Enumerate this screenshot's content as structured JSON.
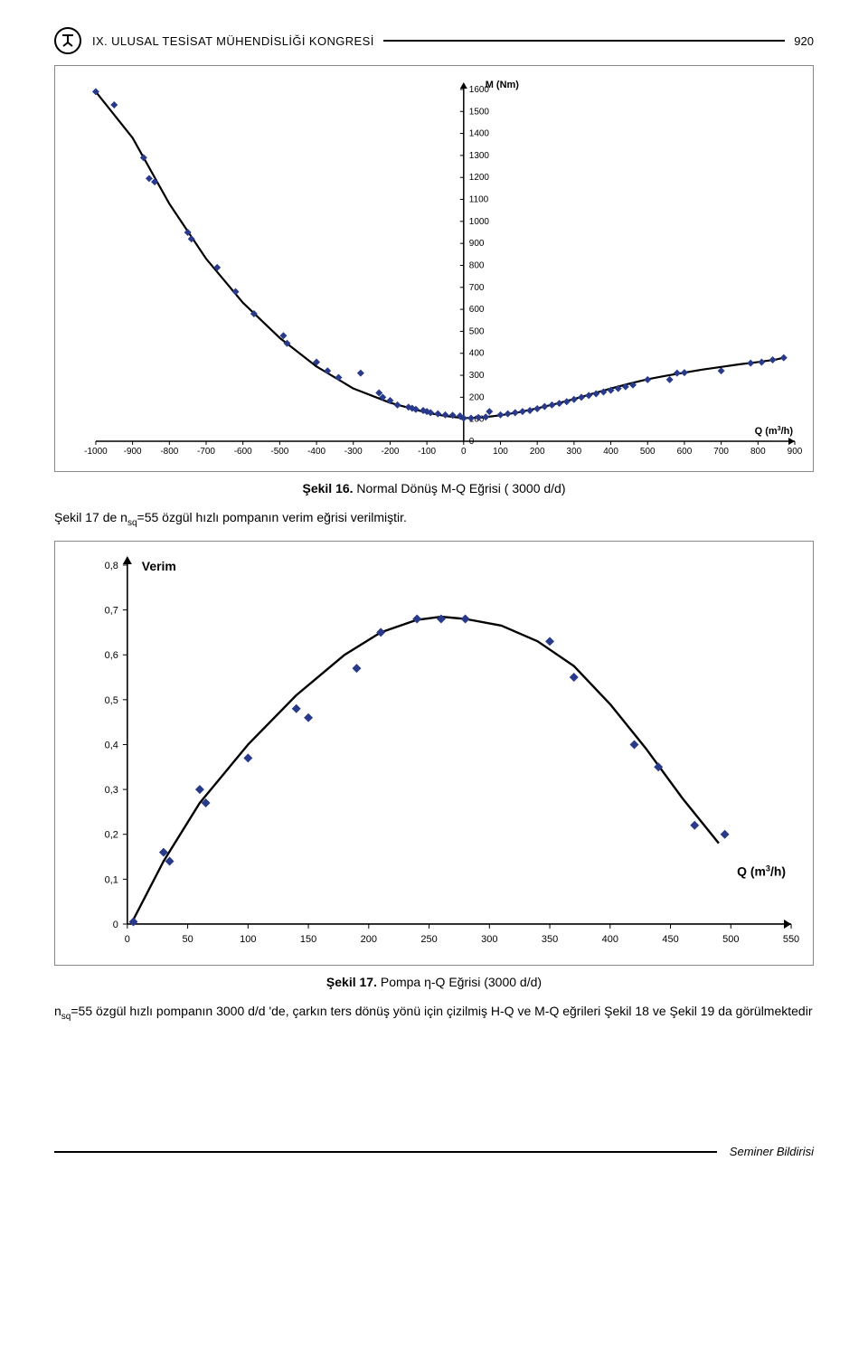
{
  "header": {
    "title": "IX. ULUSAL TESİSAT MÜHENDİSLİĞİ KONGRESİ",
    "page_number": "920"
  },
  "chart1": {
    "type": "scatter-line",
    "y_axis_label": "M (Nm)",
    "x_axis_label": "Q (m3/h)",
    "x_ticks": [
      -1000,
      -900,
      -800,
      -700,
      -600,
      -500,
      -400,
      -300,
      -200,
      -100,
      0,
      100,
      200,
      300,
      400,
      500,
      600,
      700,
      800,
      900
    ],
    "y_ticks": [
      0,
      100,
      200,
      300,
      400,
      500,
      600,
      700,
      800,
      900,
      1000,
      1100,
      1200,
      1300,
      1400,
      1500,
      1600
    ],
    "xlim": [
      -1000,
      900
    ],
    "ylim": [
      0,
      1600
    ],
    "background": "#ffffff",
    "grid": false,
    "axis_color": "#000000",
    "tick_fontsize": 10,
    "label_fontsize": 11,
    "marker_color": "#2a3a8a",
    "marker_size": 6,
    "line_color": "#000000",
    "line_width": 2.2,
    "markers": [
      [
        -1000,
        1590
      ],
      [
        -950,
        1530
      ],
      [
        -870,
        1290
      ],
      [
        -855,
        1195
      ],
      [
        -840,
        1180
      ],
      [
        -750,
        950
      ],
      [
        -740,
        920
      ],
      [
        -670,
        790
      ],
      [
        -620,
        680
      ],
      [
        -570,
        580
      ],
      [
        -490,
        480
      ],
      [
        -480,
        445
      ],
      [
        -400,
        360
      ],
      [
        -370,
        320
      ],
      [
        -340,
        290
      ],
      [
        -280,
        310
      ],
      [
        -230,
        220
      ],
      [
        -220,
        200
      ],
      [
        -200,
        185
      ],
      [
        -180,
        165
      ],
      [
        -150,
        155
      ],
      [
        -140,
        150
      ],
      [
        -130,
        145
      ],
      [
        -110,
        140
      ],
      [
        -100,
        135
      ],
      [
        -90,
        130
      ],
      [
        -70,
        125
      ],
      [
        -50,
        120
      ],
      [
        -30,
        118
      ],
      [
        -10,
        115
      ],
      [
        0,
        105
      ],
      [
        20,
        105
      ],
      [
        40,
        108
      ],
      [
        60,
        110
      ],
      [
        70,
        135
      ],
      [
        100,
        120
      ],
      [
        120,
        125
      ],
      [
        140,
        130
      ],
      [
        160,
        135
      ],
      [
        180,
        140
      ],
      [
        200,
        148
      ],
      [
        220,
        158
      ],
      [
        240,
        165
      ],
      [
        260,
        172
      ],
      [
        280,
        180
      ],
      [
        300,
        190
      ],
      [
        320,
        200
      ],
      [
        340,
        208
      ],
      [
        360,
        216
      ],
      [
        380,
        224
      ],
      [
        400,
        232
      ],
      [
        420,
        240
      ],
      [
        440,
        248
      ],
      [
        460,
        256
      ],
      [
        500,
        280
      ],
      [
        560,
        280
      ],
      [
        580,
        310
      ],
      [
        600,
        312
      ],
      [
        700,
        320
      ],
      [
        780,
        355
      ],
      [
        810,
        360
      ],
      [
        840,
        370
      ],
      [
        870,
        380
      ]
    ],
    "curve": [
      [
        -1000,
        1590
      ],
      [
        -900,
        1380
      ],
      [
        -800,
        1080
      ],
      [
        -700,
        830
      ],
      [
        -600,
        630
      ],
      [
        -500,
        470
      ],
      [
        -400,
        340
      ],
      [
        -300,
        240
      ],
      [
        -200,
        175
      ],
      [
        -100,
        130
      ],
      [
        -50,
        115
      ],
      [
        0,
        105
      ],
      [
        50,
        108
      ],
      [
        100,
        118
      ],
      [
        150,
        132
      ],
      [
        200,
        150
      ],
      [
        250,
        170
      ],
      [
        300,
        192
      ],
      [
        350,
        216
      ],
      [
        400,
        240
      ],
      [
        450,
        262
      ],
      [
        500,
        282
      ],
      [
        550,
        298
      ],
      [
        600,
        312
      ],
      [
        650,
        326
      ],
      [
        700,
        338
      ],
      [
        750,
        350
      ],
      [
        800,
        360
      ],
      [
        850,
        372
      ],
      [
        870,
        380
      ]
    ]
  },
  "caption1": {
    "bold": "Şekil 16.",
    "rest": " Normal Dönüş M-Q Eğrisi ( 3000 d/d)"
  },
  "text1": {
    "pre": "Şekil 17 de  n",
    "sub": "sq",
    "post": "=55 özgül hızlı pompanın verim eğrisi verilmiştir."
  },
  "chart2": {
    "type": "scatter-line",
    "y_axis_label": "Verim",
    "x_axis_label": "Q (m3/h)",
    "x_ticks": [
      0,
      50,
      100,
      150,
      200,
      250,
      300,
      350,
      400,
      450,
      500,
      550
    ],
    "y_ticks": [
      0,
      0.1,
      0.2,
      0.3,
      0.4,
      0.5,
      0.6,
      0.7,
      0.8
    ],
    "xlim": [
      0,
      550
    ],
    "ylim": [
      0,
      0.8
    ],
    "background": "#ffffff",
    "axis_color": "#000000",
    "tick_fontsize": 11,
    "label_fontsize": 14,
    "marker_color": "#2a3a8a",
    "marker_size": 7,
    "line_color": "#000000",
    "line_width": 2.4,
    "markers": [
      [
        5,
        0.005
      ],
      [
        30,
        0.16
      ],
      [
        35,
        0.14
      ],
      [
        60,
        0.3
      ],
      [
        65,
        0.27
      ],
      [
        100,
        0.37
      ],
      [
        140,
        0.48
      ],
      [
        150,
        0.46
      ],
      [
        190,
        0.57
      ],
      [
        210,
        0.65
      ],
      [
        240,
        0.68
      ],
      [
        260,
        0.68
      ],
      [
        280,
        0.68
      ],
      [
        350,
        0.63
      ],
      [
        370,
        0.55
      ],
      [
        420,
        0.4
      ],
      [
        440,
        0.35
      ],
      [
        470,
        0.22
      ],
      [
        495,
        0.2
      ]
    ],
    "curve": [
      [
        5,
        0.01
      ],
      [
        30,
        0.14
      ],
      [
        60,
        0.27
      ],
      [
        100,
        0.4
      ],
      [
        140,
        0.51
      ],
      [
        180,
        0.6
      ],
      [
        210,
        0.65
      ],
      [
        240,
        0.678
      ],
      [
        260,
        0.685
      ],
      [
        280,
        0.68
      ],
      [
        310,
        0.665
      ],
      [
        340,
        0.63
      ],
      [
        370,
        0.575
      ],
      [
        400,
        0.49
      ],
      [
        430,
        0.39
      ],
      [
        460,
        0.28
      ],
      [
        490,
        0.18
      ]
    ]
  },
  "caption2": {
    "bold": "Şekil 17.",
    "rest": " Pompa η-Q Eğrisi (3000 d/d)"
  },
  "text2": {
    "pre": "n",
    "sub": "sq",
    "post": "=55 özgül hızlı pompanın 3000 d/d 'de, çarkın ters dönüş yönü için çizilmiş H-Q ve M-Q eğrileri Şekil 18 ve Şekil 19 da görülmektedir"
  },
  "footer": {
    "text": "Seminer Bildirisi"
  }
}
